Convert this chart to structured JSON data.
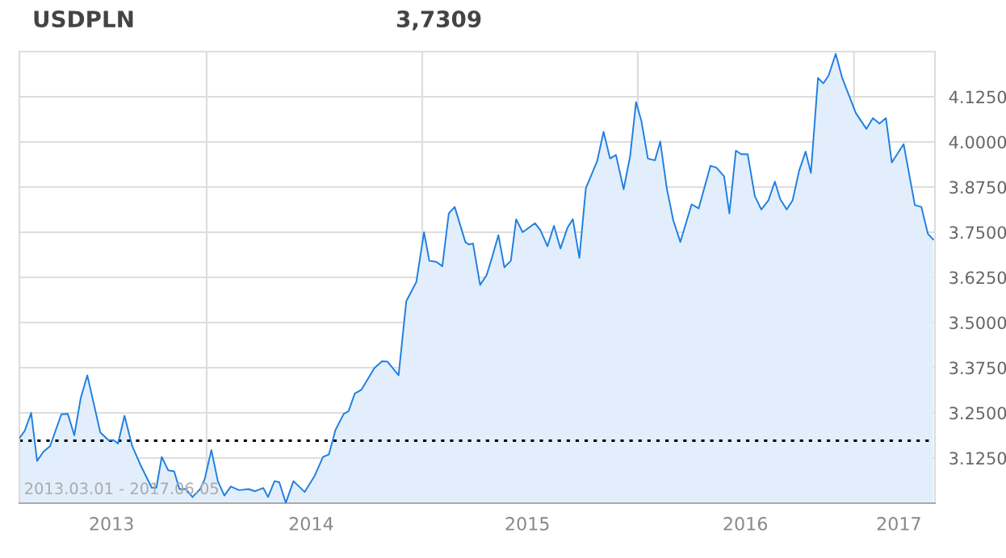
{
  "chart_data": {
    "type": "area",
    "title": "USDPLN",
    "subtitle": "3,7309",
    "annotations": [
      "2013.03.01 - 2017.06.05"
    ],
    "x": [
      "2013-02-18",
      "2013-02-27",
      "2013-03-10",
      "2013-03-20",
      "2013-03-31",
      "2013-04-11",
      "2013-04-30",
      "2013-05-11",
      "2013-05-22",
      "2013-06-02",
      "2013-06-13",
      "2013-07-05",
      "2013-07-19",
      "2013-07-27",
      "2013-08-04",
      "2013-08-15",
      "2013-08-28",
      "2013-09-11",
      "2013-09-30",
      "2013-10-08",
      "2013-10-17",
      "2013-10-28",
      "2013-11-07",
      "2013-11-16",
      "2013-11-27",
      "2013-12-08",
      "2013-12-21",
      "2013-12-29",
      "2014-01-09",
      "2014-01-20",
      "2014-01-31",
      "2014-02-11",
      "2014-02-25",
      "2014-03-13",
      "2014-03-24",
      "2014-04-07",
      "2014-04-15",
      "2014-04-26",
      "2014-05-04",
      "2014-05-15",
      "2014-05-28",
      "2014-06-16",
      "2014-07-03",
      "2014-07-17",
      "2014-07-27",
      "2014-08-07",
      "2014-08-21",
      "2014-08-29",
      "2014-09-09",
      "2014-09-20",
      "2014-10-12",
      "2014-10-25",
      "2014-11-03",
      "2014-11-22",
      "2014-12-05",
      "2014-12-22",
      "2015-01-04",
      "2015-01-13",
      "2015-01-25",
      "2015-02-04",
      "2015-02-15",
      "2015-02-25",
      "2015-03-15",
      "2015-03-21",
      "2015-03-28",
      "2015-04-09",
      "2015-04-20",
      "2015-04-29",
      "2015-05-10",
      "2015-05-20",
      "2015-05-31",
      "2015-06-09",
      "2015-06-20",
      "2015-07-11",
      "2015-07-20",
      "2015-08-01",
      "2015-08-12",
      "2015-08-23",
      "2015-09-04",
      "2015-09-13",
      "2015-09-24",
      "2015-10-05",
      "2015-10-24",
      "2015-11-04",
      "2015-11-15",
      "2015-11-25",
      "2015-12-08",
      "2015-12-19",
      "2015-12-29",
      "2016-01-07",
      "2016-01-18",
      "2016-01-30",
      "2016-02-08",
      "2016-02-19",
      "2016-03-01",
      "2016-03-13",
      "2016-04-01",
      "2016-04-13",
      "2016-05-03",
      "2016-05-13",
      "2016-05-26",
      "2016-06-04",
      "2016-06-15",
      "2016-06-24",
      "2016-07-05",
      "2016-07-17",
      "2016-07-28",
      "2016-08-09",
      "2016-08-20",
      "2016-08-29",
      "2016-09-09",
      "2016-09-19",
      "2016-09-30",
      "2016-10-11",
      "2016-10-20",
      "2016-11-01",
      "2016-11-10",
      "2016-11-19",
      "2016-12-01",
      "2016-12-12",
      "2017-01-04",
      "2017-01-22",
      "2017-02-02",
      "2017-02-13",
      "2017-02-24",
      "2017-03-06",
      "2017-03-26",
      "2017-04-14",
      "2017-04-25",
      "2017-05-06",
      "2017-05-15"
    ],
    "series": [
      {
        "color": "#1f7fe0",
        "values": [
          3.18,
          3.2,
          3.25,
          3.117,
          3.143,
          3.158,
          3.246,
          3.247,
          3.188,
          3.292,
          3.354,
          3.196,
          3.174,
          3.175,
          3.165,
          3.242,
          3.158,
          3.106,
          3.043,
          3.043,
          3.128,
          3.091,
          3.088,
          3.039,
          3.039,
          3.017,
          3.039,
          3.068,
          3.147,
          3.061,
          3.021,
          3.046,
          3.036,
          3.039,
          3.033,
          3.042,
          3.017,
          3.061,
          3.058,
          3.001,
          3.061,
          3.031,
          3.076,
          3.128,
          3.135,
          3.202,
          3.247,
          3.254,
          3.304,
          3.314,
          3.374,
          3.393,
          3.392,
          3.354,
          3.559,
          3.612,
          3.75,
          3.671,
          3.668,
          3.656,
          3.802,
          3.82,
          3.723,
          3.716,
          3.719,
          3.604,
          3.631,
          3.679,
          3.742,
          3.653,
          3.671,
          3.786,
          3.75,
          3.775,
          3.756,
          3.711,
          3.768,
          3.705,
          3.763,
          3.786,
          3.679,
          3.872,
          3.946,
          4.028,
          3.954,
          3.964,
          3.869,
          3.961,
          4.11,
          4.058,
          3.954,
          3.949,
          4.001,
          3.872,
          3.783,
          3.723,
          3.827,
          3.816,
          3.934,
          3.929,
          3.905,
          3.802,
          3.976,
          3.966,
          3.966,
          3.85,
          3.813,
          3.838,
          3.89,
          3.842,
          3.813,
          3.838,
          3.92,
          3.973,
          3.914,
          4.177,
          4.162,
          4.184,
          4.244,
          4.177,
          4.08,
          4.036,
          4.066,
          4.051,
          4.066,
          3.943,
          3.994,
          3.825,
          3.82,
          3.746,
          3.73
        ]
      }
    ],
    "xlim": [
      "2013-02-18",
      "2017-05-18"
    ],
    "xticks": [
      {
        "value": "2014-01-01",
        "label": null
      },
      {
        "value": "2015-01-01",
        "label": null
      },
      {
        "value": "2016-01-01",
        "label": null
      },
      {
        "value": "2017-01-01",
        "label": null
      },
      {
        "value": "2013-07-24",
        "label": "2013"
      },
      {
        "value": "2014-06-27",
        "label": "2014"
      },
      {
        "value": "2015-06-28",
        "label": "2015"
      },
      {
        "value": "2016-07-01",
        "label": "2016"
      },
      {
        "value": "2017-03-18",
        "label": "2017"
      }
    ],
    "ylim": [
      3.0,
      4.25
    ],
    "yticks": [
      {
        "value": 3.125,
        "label": "3.1250"
      },
      {
        "value": 3.25,
        "label": "3.2500"
      },
      {
        "value": 3.375,
        "label": "3.3750"
      },
      {
        "value": 3.5,
        "label": "3.5000"
      },
      {
        "value": 3.625,
        "label": "3.6250"
      },
      {
        "value": 3.75,
        "label": "3.7500"
      },
      {
        "value": 3.875,
        "label": "3.8750"
      },
      {
        "value": 4.0,
        "label": "4.0000"
      },
      {
        "value": 4.125,
        "label": "4.1250"
      }
    ],
    "ref_lines": [
      {
        "axis": "y",
        "value": 3.173,
        "label": null,
        "color": "#000000",
        "line_style": "dotted"
      }
    ],
    "grid": true,
    "legend": false
  }
}
